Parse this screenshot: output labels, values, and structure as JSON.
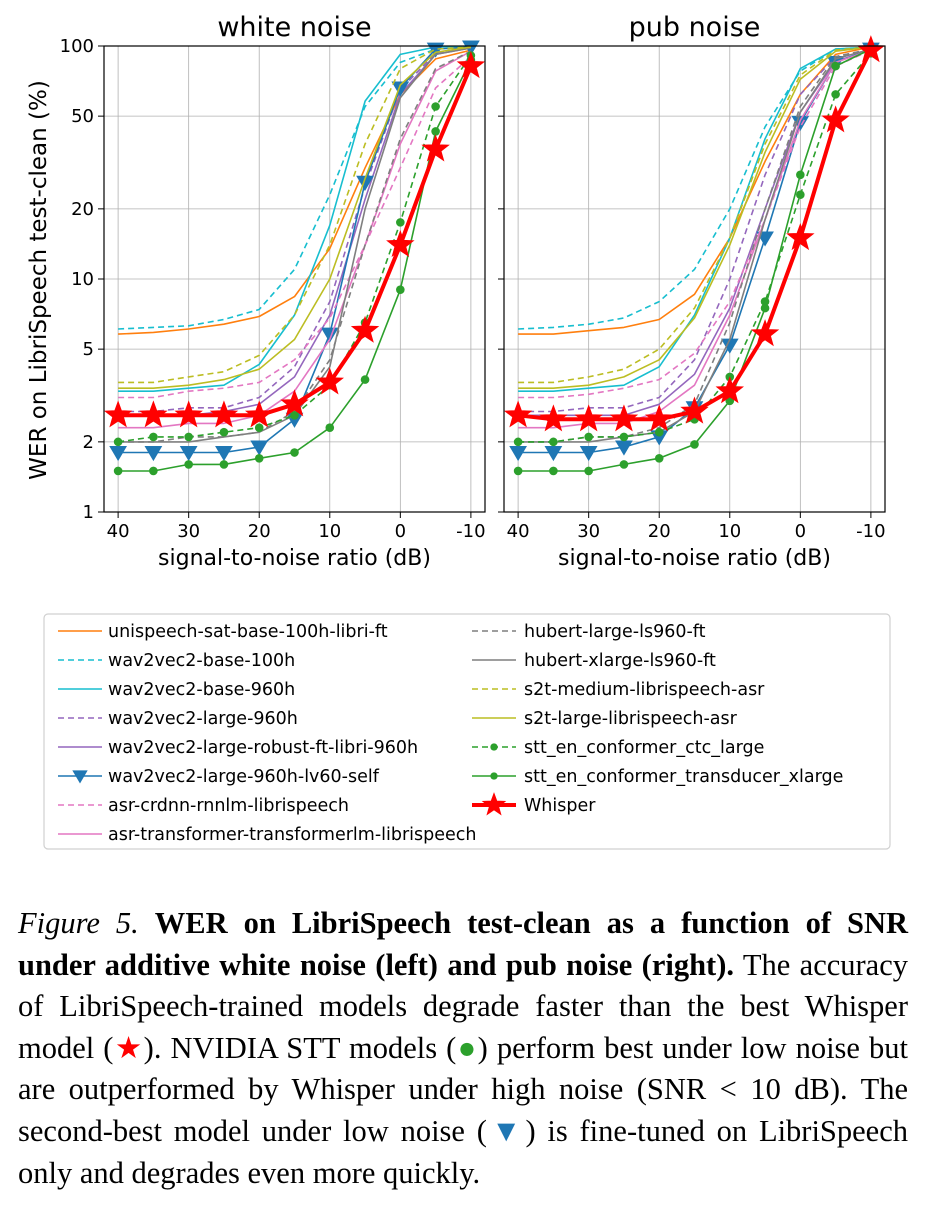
{
  "chart_data": [
    {
      "type": "line",
      "title": "white noise",
      "xlabel": "signal-to-noise ratio (dB)",
      "ylabel": "WER on LibriSpeech test-clean (%)",
      "y_scale": "log",
      "ylim": [
        1,
        100
      ],
      "xlim": [
        42,
        -12
      ],
      "x_ticks": [
        "40",
        "30",
        "20",
        "10",
        "0",
        "-10"
      ],
      "y_ticks": [
        "1",
        "2",
        "5",
        "10",
        "20",
        "50",
        "100"
      ],
      "grid": true,
      "x": [
        40,
        35,
        30,
        25,
        20,
        15,
        10,
        5,
        0,
        -5,
        -10
      ],
      "series": [
        {
          "name": "unispeech-sat-base-100h-libri-ft",
          "values": [
            5.8,
            5.9,
            6.1,
            6.4,
            6.9,
            8.4,
            13.5,
            30,
            62,
            88,
            96
          ]
        },
        {
          "name": "wav2vec2-base-100h",
          "values": [
            6.1,
            6.2,
            6.3,
            6.7,
            7.4,
            11,
            23,
            55,
            85,
            97,
            99
          ]
        },
        {
          "name": "wav2vec2-base-960h",
          "values": [
            3.3,
            3.3,
            3.4,
            3.5,
            4.3,
            7,
            17,
            58,
            92,
            99,
            100
          ]
        },
        {
          "name": "wav2vec2-large-960h",
          "values": [
            2.7,
            2.7,
            2.8,
            2.8,
            3.1,
            4.2,
            8,
            25,
            65,
            93,
            99
          ]
        },
        {
          "name": "wav2vec2-large-robust-ft-libri-960h",
          "values": [
            2.6,
            2.6,
            2.6,
            2.7,
            2.9,
            3.8,
            7,
            22,
            62,
            92,
            98
          ]
        },
        {
          "name": "wav2vec2-large-960h-lv60-self",
          "values": [
            1.8,
            1.8,
            1.8,
            1.8,
            1.9,
            2.5,
            5.8,
            26,
            66,
            97,
            99
          ]
        },
        {
          "name": "asr-crdnn-rnnlm-librispeech",
          "values": [
            3.1,
            3.1,
            3.3,
            3.4,
            3.6,
            4.5,
            6.8,
            14,
            30,
            66,
            90
          ]
        },
        {
          "name": "asr-transformer-transformerlm-librispeech",
          "values": [
            2.3,
            2.3,
            2.4,
            2.4,
            2.6,
            3.3,
            5.5,
            14,
            38,
            78,
            95
          ]
        },
        {
          "name": "hubert-large-ls960-ft",
          "values": [
            2,
            2,
            2.1,
            2.1,
            2.2,
            2.7,
            4.5,
            14,
            40,
            80,
            95
          ]
        },
        {
          "name": "hubert-xlarge-ls960-ft",
          "values": [
            2,
            2,
            2,
            2.1,
            2.2,
            2.6,
            4.2,
            20,
            60,
            92,
            98
          ]
        },
        {
          "name": "s2t-medium-librispeech-asr",
          "values": [
            3.6,
            3.6,
            3.8,
            4,
            4.7,
            7,
            14,
            38,
            80,
            97,
            99
          ]
        },
        {
          "name": "s2t-large-librispeech-asr",
          "values": [
            3.4,
            3.4,
            3.5,
            3.7,
            4.1,
            5.5,
            10,
            27,
            68,
            94,
            99
          ]
        },
        {
          "name": "stt_en_conformer_ctc_large",
          "values": [
            2,
            2.1,
            2.1,
            2.2,
            2.3,
            2.6,
            3.5,
            6.5,
            17.5,
            55,
            91
          ]
        },
        {
          "name": "stt_en_conformer_transducer_xlarge",
          "values": [
            1.5,
            1.5,
            1.6,
            1.6,
            1.7,
            1.8,
            2.3,
            3.7,
            9,
            43,
            87
          ]
        },
        {
          "name": "Whisper",
          "values": [
            2.6,
            2.6,
            2.6,
            2.6,
            2.6,
            2.9,
            3.6,
            6,
            14,
            36,
            82
          ]
        }
      ]
    },
    {
      "type": "line",
      "title": "pub noise",
      "xlabel": "signal-to-noise ratio (dB)",
      "y_scale": "log",
      "ylim": [
        1,
        100
      ],
      "xlim": [
        42,
        -12
      ],
      "x_ticks": [
        "40",
        "30",
        "20",
        "10",
        "0",
        "-10"
      ],
      "grid": true,
      "x": [
        40,
        35,
        30,
        25,
        20,
        15,
        10,
        5,
        0,
        -5,
        -10
      ],
      "series": [
        {
          "name": "unispeech-sat-base-100h-libri-ft",
          "values": [
            5.8,
            5.8,
            6,
            6.2,
            6.7,
            8.6,
            15,
            32,
            62,
            92,
            99
          ]
        },
        {
          "name": "wav2vec2-base-100h",
          "values": [
            6.1,
            6.2,
            6.4,
            6.8,
            8,
            11,
            20,
            45,
            78,
            97,
            99
          ]
        },
        {
          "name": "wav2vec2-base-960h",
          "values": [
            3.3,
            3.3,
            3.4,
            3.5,
            4.2,
            7,
            15,
            40,
            80,
            97,
            99
          ]
        },
        {
          "name": "wav2vec2-large-960h",
          "values": [
            2.7,
            2.7,
            2.8,
            2.8,
            3.1,
            4.5,
            10,
            28,
            62,
            90,
            97
          ]
        },
        {
          "name": "wav2vec2-large-robust-ft-libri-960h",
          "values": [
            2.6,
            2.6,
            2.6,
            2.6,
            2.9,
            3.9,
            7.5,
            20,
            52,
            86,
            96
          ]
        },
        {
          "name": "wav2vec2-large-960h-lv60-self",
          "values": [
            1.8,
            1.8,
            1.8,
            1.9,
            2.1,
            2.8,
            5.2,
            15,
            47,
            85,
            97
          ]
        },
        {
          "name": "asr-crdnn-rnnlm-librispeech",
          "values": [
            3.1,
            3.1,
            3.2,
            3.4,
            3.7,
            4.8,
            8,
            18,
            45,
            82,
            96
          ]
        },
        {
          "name": "asr-transformer-transformerlm-librispeech",
          "values": [
            2.3,
            2.3,
            2.4,
            2.4,
            2.7,
            3.5,
            7,
            18,
            48,
            85,
            96
          ]
        },
        {
          "name": "hubert-large-ls960-ft",
          "values": [
            2,
            2,
            2.1,
            2.1,
            2.3,
            2.9,
            6.5,
            20,
            55,
            90,
            97
          ]
        },
        {
          "name": "hubert-xlarge-ls960-ft",
          "values": [
            2,
            2,
            2,
            2.1,
            2.2,
            2.7,
            5.5,
            18,
            52,
            88,
            97
          ]
        },
        {
          "name": "s2t-medium-librispeech-asr",
          "values": [
            3.6,
            3.6,
            3.8,
            4.1,
            5,
            7.5,
            15,
            38,
            75,
            96,
            99
          ]
        },
        {
          "name": "s2t-large-librispeech-asr",
          "values": [
            3.4,
            3.4,
            3.5,
            3.8,
            4.5,
            6.8,
            14,
            35,
            72,
            95,
            99
          ]
        },
        {
          "name": "stt_en_conformer_ctc_large",
          "values": [
            2,
            2,
            2.1,
            2.1,
            2.2,
            2.5,
            3.8,
            8,
            23,
            62,
            93
          ]
        },
        {
          "name": "stt_en_conformer_transducer_xlarge",
          "values": [
            1.5,
            1.5,
            1.5,
            1.6,
            1.7,
            1.95,
            3,
            7.5,
            28,
            82,
            97
          ]
        },
        {
          "name": "Whisper",
          "values": [
            2.6,
            2.5,
            2.5,
            2.5,
            2.5,
            2.7,
            3.3,
            5.8,
            15,
            48,
            96
          ]
        }
      ]
    }
  ],
  "legend": {
    "colors": {
      "unispeech-sat-base-100h-libri-ft": "#ff7f0e",
      "wav2vec2-base-100h": "#17becf",
      "wav2vec2-base-960h": "#17becf",
      "wav2vec2-large-960h": "#9467bd",
      "wav2vec2-large-robust-ft-libri-960h": "#9467bd",
      "wav2vec2-large-960h-lv60-self": "#1f77b4",
      "asr-crdnn-rnnlm-librispeech": "#e377c2",
      "asr-transformer-transformerlm-librispeech": "#e377c2",
      "hubert-large-ls960-ft": "#7f7f7f",
      "hubert-xlarge-ls960-ft": "#7f7f7f",
      "s2t-medium-librispeech-asr": "#bcbd22",
      "s2t-large-librispeech-asr": "#bcbd22",
      "stt_en_conformer_ctc_large": "#2ca02c",
      "stt_en_conformer_transducer_xlarge": "#2ca02c",
      "Whisper": "#ff0000"
    },
    "dashed": [
      "wav2vec2-base-100h",
      "wav2vec2-large-960h",
      "asr-crdnn-rnnlm-librispeech",
      "hubert-large-ls960-ft",
      "s2t-medium-librispeech-asr",
      "stt_en_conformer_ctc_large"
    ],
    "markers": {
      "wav2vec2-large-960h-lv60-self": "triangle-down",
      "stt_en_conformer_ctc_large": "circle",
      "stt_en_conformer_transducer_xlarge": "circle",
      "Whisper": "star"
    },
    "column_left": [
      "unispeech-sat-base-100h-libri-ft",
      "wav2vec2-base-100h",
      "wav2vec2-base-960h",
      "wav2vec2-large-960h",
      "wav2vec2-large-robust-ft-libri-960h",
      "wav2vec2-large-960h-lv60-self",
      "asr-crdnn-rnnlm-librispeech",
      "asr-transformer-transformerlm-librispeech"
    ],
    "column_right": [
      "hubert-large-ls960-ft",
      "hubert-xlarge-ls960-ft",
      "s2t-medium-librispeech-asr",
      "s2t-large-librispeech-asr",
      "stt_en_conformer_ctc_large",
      "stt_en_conformer_transducer_xlarge",
      "Whisper"
    ]
  },
  "caption": {
    "label": "Figure 5.",
    "bold_text": "WER on LibriSpeech test-clean as a function of SNR under additive white noise (left) and pub noise (right).",
    "text_1": "The accuracy of LibriSpeech-trained models degrade faster than the best Whisper model (",
    "star_symbol": "★",
    "text_2": "). NVIDIA STT models (",
    "dot_symbol": "●",
    "text_3": ") perform best under low noise but are outperformed by Whisper under high noise (SNR < 10 dB). The second-best model under low noise (",
    "triangle_symbol": "▼",
    "text_4": ") is fine-tuned on LibriSpeech only and degrades even more quickly."
  }
}
